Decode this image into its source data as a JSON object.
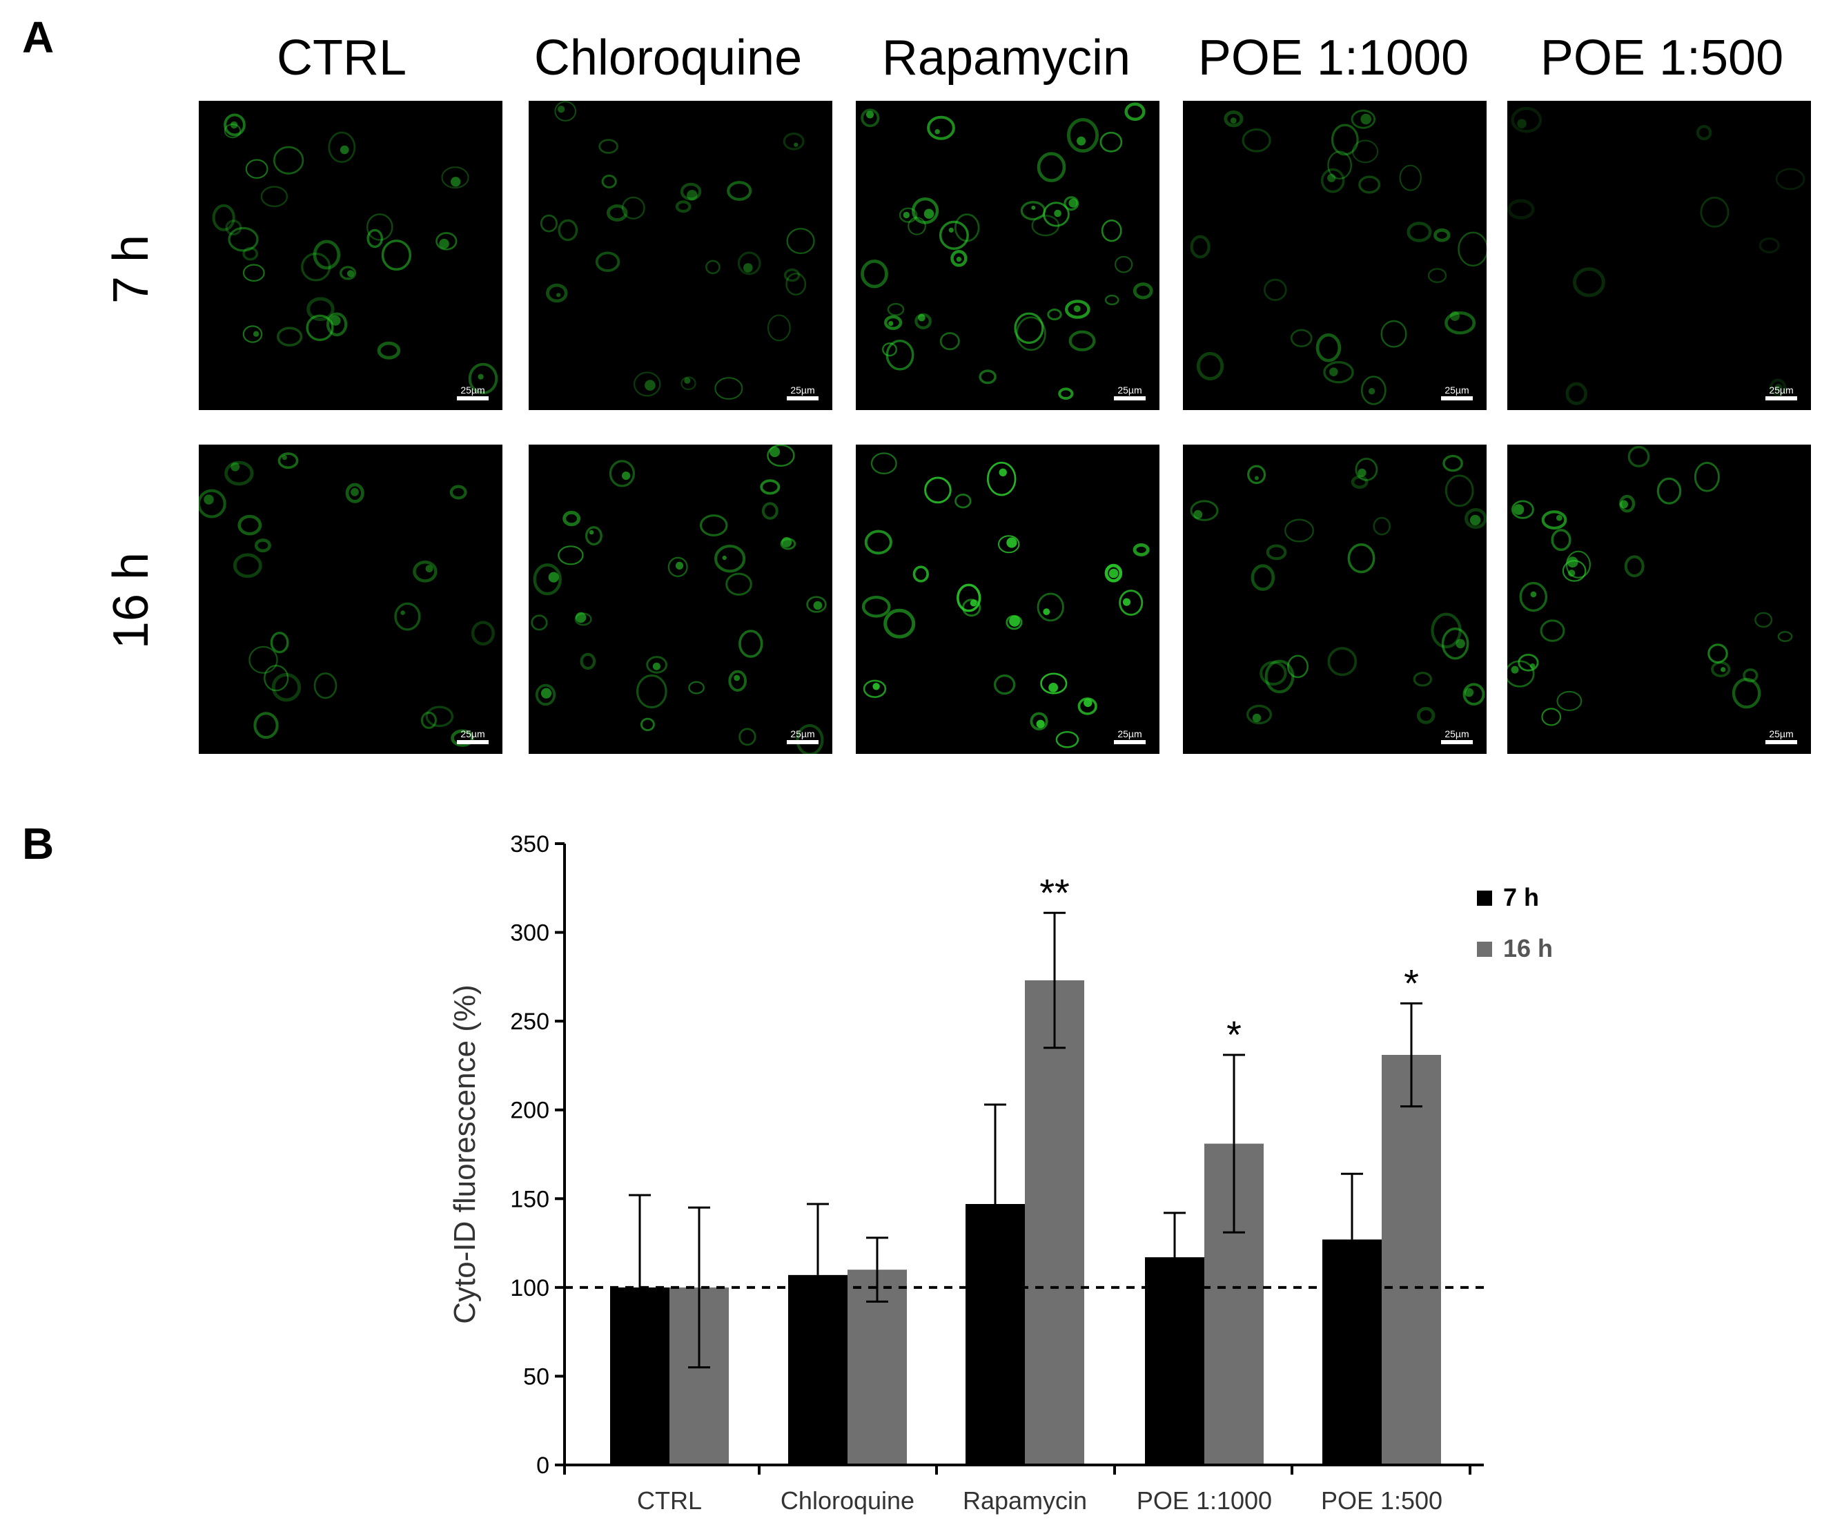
{
  "panel_a": {
    "letter": "A",
    "columns": [
      "CTRL",
      "Chloroquine",
      "Rapamycin",
      "POE 1:1000",
      "POE 1:500"
    ],
    "rows": [
      "7 h",
      "16 h"
    ],
    "scale_bar_label": "25µm",
    "cell_color": "#2bd12b",
    "intensity": [
      [
        0.55,
        0.45,
        0.7,
        0.45,
        0.25
      ],
      [
        0.5,
        0.65,
        0.95,
        0.55,
        0.65
      ]
    ],
    "cell_counts": [
      [
        26,
        22,
        34,
        22,
        9
      ],
      [
        20,
        26,
        22,
        22,
        22
      ]
    ]
  },
  "panel_b": {
    "letter": "B",
    "dashed_reference_value": 100
  },
  "chart_data": {
    "type": "bar",
    "categories": [
      "CTRL",
      "Chloroquine",
      "Rapamycin",
      "POE 1:1000",
      "POE 1:500"
    ],
    "series": [
      {
        "name": "7 h",
        "color": "#000000",
        "values": [
          100,
          107,
          147,
          117,
          127
        ],
        "errors": [
          52,
          40,
          56,
          25,
          37
        ]
      },
      {
        "name": "16 h",
        "color": "#707070",
        "values": [
          100,
          110,
          273,
          181,
          231
        ],
        "errors": [
          45,
          18,
          38,
          50,
          29
        ]
      }
    ],
    "significance": [
      "",
      "",
      "**",
      "*",
      "*"
    ],
    "ylabel": "Cyto-ID fluorescence (%)",
    "xlabel": "",
    "title": "",
    "ylim": [
      0,
      350
    ],
    "yticks": [
      0,
      50,
      100,
      150,
      200,
      250,
      300,
      350
    ],
    "legend_position": "top-right",
    "grid": false
  }
}
